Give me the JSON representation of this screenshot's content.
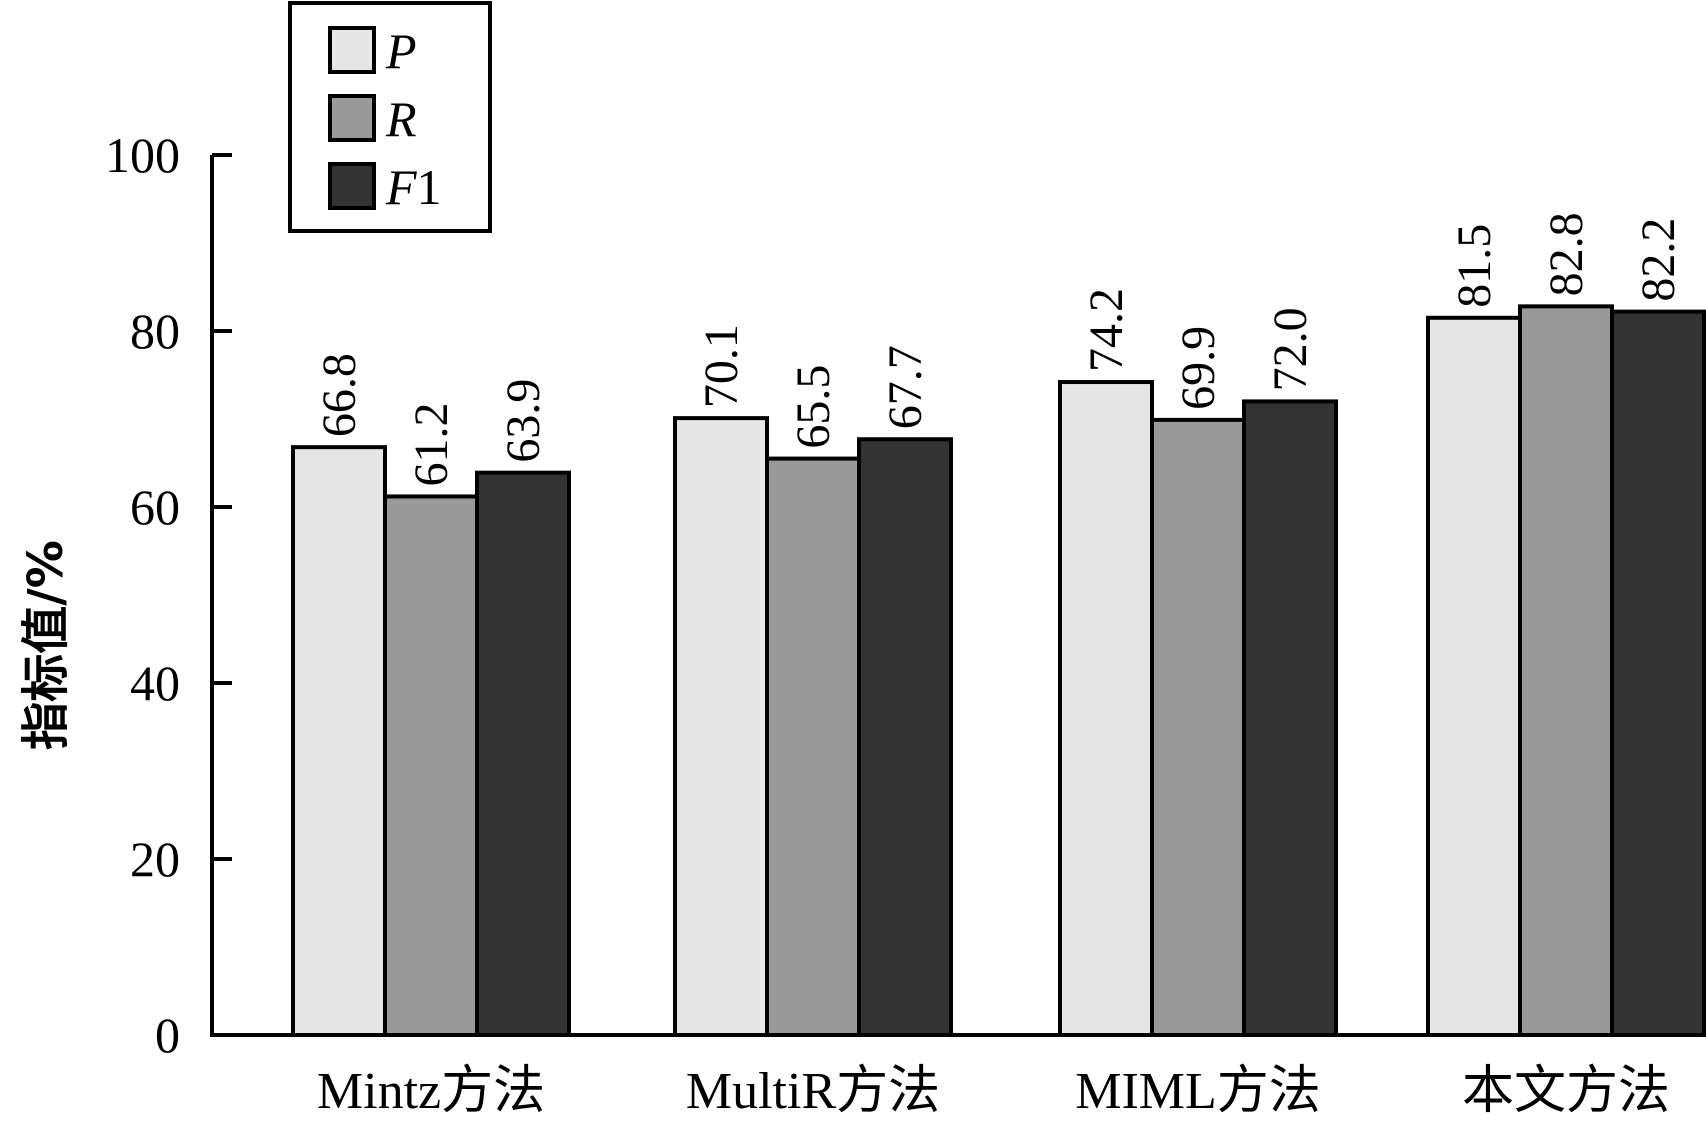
{
  "chart_data": {
    "type": "bar",
    "ylabel": "指标值/%",
    "xlabel": "",
    "ylim": [
      0,
      100
    ],
    "yticks": [
      "0",
      "20",
      "40",
      "60",
      "80",
      "100"
    ],
    "categories": [
      "Mintz方法",
      "MultiR方法",
      "MIML方法",
      "本文方法"
    ],
    "series": [
      {
        "name": "P",
        "color": "#e6e6e6",
        "values": [
          66.8,
          70.1,
          74.2,
          81.5
        ],
        "labels": [
          "66.8",
          "70.1",
          "74.2",
          "81.5"
        ]
      },
      {
        "name": "R",
        "color": "#999999",
        "values": [
          61.2,
          65.5,
          69.9,
          82.8
        ],
        "labels": [
          "61.2",
          "65.5",
          "69.9",
          "82.8"
        ]
      },
      {
        "name": "F1",
        "color": "#333333",
        "values": [
          63.9,
          67.7,
          72.0,
          82.2
        ],
        "labels": [
          "63.9",
          "67.7",
          "72.0",
          "82.2"
        ]
      }
    ],
    "legend": {
      "placement": "top-left",
      "entries": [
        {
          "main": "P",
          "suffix": ""
        },
        {
          "main": "R",
          "suffix": ""
        },
        {
          "main": "F",
          "suffix": "1"
        }
      ]
    },
    "grid": false
  }
}
